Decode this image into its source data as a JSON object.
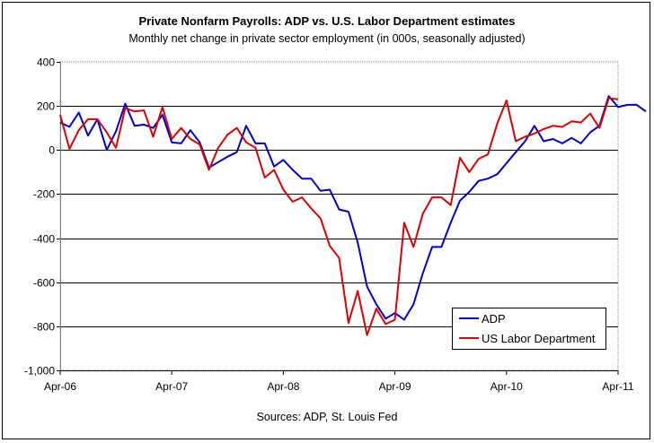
{
  "chart_data": {
    "type": "line",
    "title": "Private Nonfarm Payrolls: ADP vs. U.S. Labor Department estimates",
    "subtitle": "Monthly net change in private sector employment (in 000s, seasonally adjusted)",
    "source": "Sources: ADP, St. Louis Fed",
    "ylim": [
      -1000,
      400
    ],
    "yticks": [
      400,
      200,
      0,
      -200,
      -400,
      -600,
      -800,
      -1000
    ],
    "ytick_labels": [
      "400",
      "200",
      "0",
      "-200",
      "-400",
      "-600",
      "-800",
      "-1,000"
    ],
    "xticks": [
      "Apr-06",
      "Apr-07",
      "Apr-08",
      "Apr-09",
      "Apr-10",
      "Apr-11"
    ],
    "x_start": "Apr-06",
    "x_end": "Apr-11",
    "grid": "horizontal",
    "legend_position": "bottom-right",
    "series": [
      {
        "name": "ADP",
        "color": "#0000cc",
        "values": [
          125,
          105,
          170,
          65,
          140,
          0,
          85,
          210,
          110,
          115,
          100,
          160,
          35,
          30,
          90,
          35,
          -80,
          -55,
          -30,
          -10,
          110,
          30,
          30,
          -75,
          -45,
          -90,
          -130,
          -130,
          -185,
          -180,
          -270,
          -280,
          -420,
          -620,
          -700,
          -765,
          -740,
          -770,
          -700,
          -560,
          -440,
          -440,
          -330,
          -230,
          -190,
          -140,
          -130,
          -110,
          -60,
          -10,
          40,
          110,
          40,
          50,
          30,
          55,
          30,
          80,
          110,
          245,
          195,
          205,
          205,
          175
        ]
      },
      {
        "name": "US Labor Department",
        "color": "#dd0000",
        "values": [
          160,
          5,
          90,
          140,
          140,
          80,
          10,
          190,
          175,
          180,
          60,
          195,
          50,
          100,
          50,
          25,
          -90,
          10,
          70,
          100,
          35,
          10,
          -125,
          -90,
          -180,
          -235,
          -215,
          -265,
          -310,
          -435,
          -490,
          -785,
          -640,
          -840,
          -720,
          -790,
          -770,
          -330,
          -440,
          -290,
          -215,
          -215,
          -250,
          -35,
          -100,
          -40,
          -20,
          120,
          225,
          40,
          60,
          75,
          95,
          110,
          105,
          130,
          125,
          165,
          100,
          235,
          230
        ]
      }
    ]
  }
}
